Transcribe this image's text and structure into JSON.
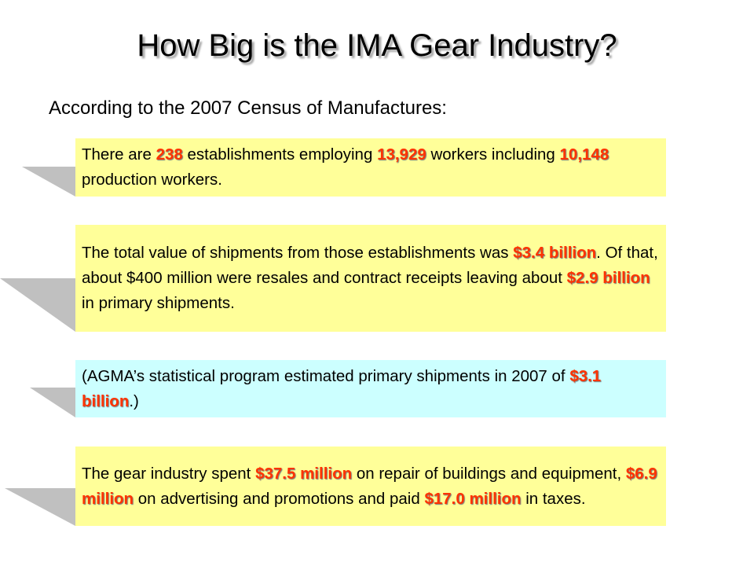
{
  "slide": {
    "title": "How Big is the IMA Gear Industry?",
    "subtitle": "According to the 2007 Census of Manufactures:"
  },
  "colors": {
    "box_yellow": "#ffff99",
    "box_cyan": "#ccffff",
    "highlight": "#ff3300",
    "tab_gray": "#c0c0c0"
  },
  "boxes": [
    {
      "background": "yellow",
      "parts": [
        {
          "text": "There are ",
          "highlight": false
        },
        {
          "text": "238",
          "highlight": true
        },
        {
          "text": " establishments employing ",
          "highlight": false
        },
        {
          "text": "13,929",
          "highlight": true
        },
        {
          "text": " workers including ",
          "highlight": false
        },
        {
          "text": "10,148",
          "highlight": true
        },
        {
          "text": " production workers.",
          "highlight": false
        }
      ]
    },
    {
      "background": "yellow",
      "parts": [
        {
          "text": "The total value of shipments from those establishments was ",
          "highlight": false
        },
        {
          "text": "$3.4 billion",
          "highlight": true
        },
        {
          "text": ".  Of that, about $400 million were resales and contract receipts leaving about ",
          "highlight": false
        },
        {
          "text": "$2.9 billion",
          "highlight": true
        },
        {
          "text": " in primary shipments.",
          "highlight": false
        }
      ]
    },
    {
      "background": "cyan",
      "parts": [
        {
          "text": "(AGMA’s statistical program estimated primary shipments in 2007 of ",
          "highlight": false
        },
        {
          "text": "$3.1 billion",
          "highlight": true
        },
        {
          "text": ".)",
          "highlight": false
        }
      ]
    },
    {
      "background": "yellow",
      "parts": [
        {
          "text": "The gear industry spent ",
          "highlight": false
        },
        {
          "text": "$37.5 million",
          "highlight": true
        },
        {
          "text": " on repair of buildings and equipment, ",
          "highlight": false
        },
        {
          "text": "$6.9 million",
          "highlight": true
        },
        {
          "text": " on advertising and promotions and paid ",
          "highlight": false
        },
        {
          "text": "$17.0 million",
          "highlight": true
        },
        {
          "text": " in taxes.",
          "highlight": false
        }
      ]
    }
  ]
}
